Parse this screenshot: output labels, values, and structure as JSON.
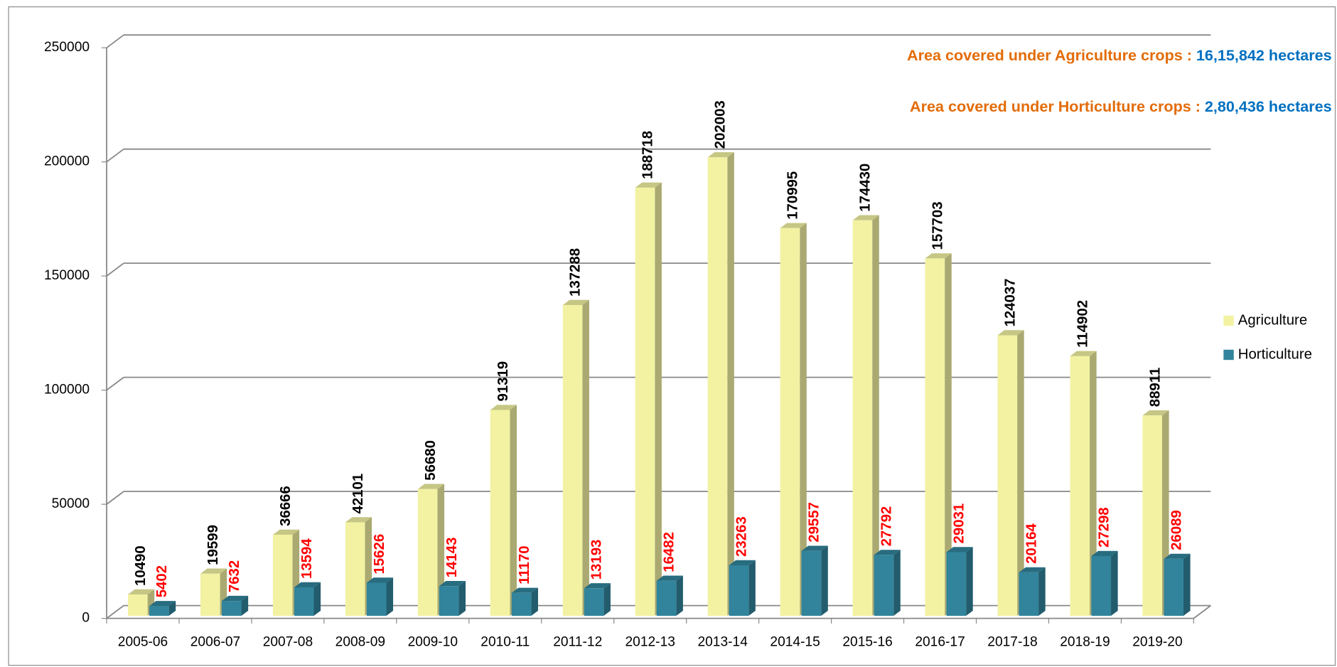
{
  "chart_data": {
    "type": "bar3d",
    "categories": [
      "2005-06",
      "2006-07",
      "2007-08",
      "2008-09",
      "2009-10",
      "2010-11",
      "2011-12",
      "2012-13",
      "2013-14",
      "2014-15",
      "2015-16",
      "2016-17",
      "2017-18",
      "2018-19",
      "2019-20"
    ],
    "series": [
      {
        "name": "Agriculture",
        "color": "#f2f2a2",
        "label_color": "#000000",
        "values": [
          10490,
          19599,
          36666,
          42101,
          56680,
          91319,
          137288,
          188718,
          202003,
          170995,
          174430,
          157703,
          124037,
          114902,
          88911
        ]
      },
      {
        "name": "Horticulture",
        "color": "#31849b",
        "label_color": "#ff0000",
        "values": [
          5402,
          7632,
          13594,
          15626,
          14143,
          11170,
          13193,
          16482,
          23263,
          29557,
          27792,
          29031,
          20164,
          27298,
          26089
        ]
      }
    ],
    "ylim": [
      0,
      250000
    ],
    "yticks": [
      0,
      50000,
      100000,
      150000,
      200000,
      250000
    ],
    "grid": true,
    "legend": "right",
    "annotations": [
      {
        "label": "Area covered under Agriculture crops : ",
        "value": "16,15,842 hectares"
      },
      {
        "label": "Area covered under Horticulture crops : ",
        "value": "2,80,436 hectares"
      }
    ]
  }
}
